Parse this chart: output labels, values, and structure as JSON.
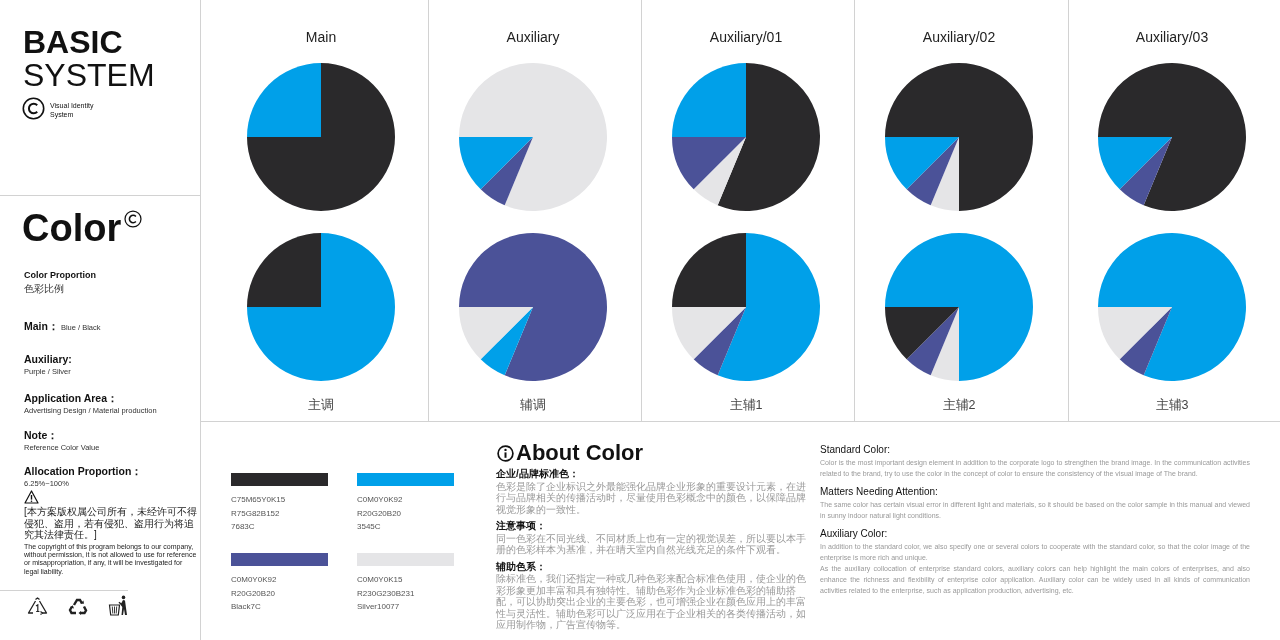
{
  "chart_data": [
    {
      "type": "other",
      "title": "BASIC",
      "subtitle": "SYSTEM",
      "annotations": [
        "Visual Identity System"
      ]
    },
    {
      "type": "other",
      "title": "Color",
      "annotations": [
        "Color Proportion",
        "色彩比例",
        "Main：",
        "Blue / Black",
        "Auxiliary:",
        "Purple / Silver",
        "Application Area：",
        "Advertising Design / Material production",
        "Note：",
        "Reference Color Value",
        "Allocation Proportion：",
        "6.25%~100%"
      ]
    },
    {
      "type": "other",
      "annotations": [
        "[本方案版权属公司所有，未经许可不得侵犯、盗用，若有侵犯、盗用行为将追究其法律责任。]",
        "The copyright of this program belongs to our company, without permission, it is not allowed to use for reference or misappropriation, if any, it will be investigated for legal liability."
      ]
    },
    {
      "type": "pie",
      "title": "Main",
      "categories": [
        null,
        null
      ],
      "values": [
        25,
        75
      ],
      "colors": [
        "#00a0e9",
        "#2a292b"
      ]
    },
    {
      "type": "pie",
      "title": "Auxiliary",
      "categories": [
        null,
        null,
        null
      ],
      "values": [
        81.25,
        6.25,
        12.5
      ],
      "colors": [
        "#e5e5e7",
        "#4b5298",
        "#00a0e9"
      ]
    },
    {
      "type": "pie",
      "title": "Auxiliary/01",
      "categories": [
        null,
        null,
        null,
        null
      ],
      "values": [
        25,
        56.25,
        6.25,
        12.5
      ],
      "colors": [
        "#00a0e9",
        "#2a292b",
        "#e5e5e7",
        "#4b5298"
      ]
    },
    {
      "type": "pie",
      "title": "Auxiliary/02",
      "categories": [
        null,
        null,
        null,
        null
      ],
      "values": [
        75,
        6.25,
        6.25,
        12.5
      ],
      "colors": [
        "#2a292b",
        "#e5e5e7",
        "#4b5298",
        "#00a0e9"
      ]
    },
    {
      "type": "pie",
      "title": "Auxiliary/03",
      "categories": [
        null,
        null,
        null
      ],
      "values": [
        81.25,
        6.25,
        12.5
      ],
      "colors": [
        "#2a292b",
        "#4b5298",
        "#00a0e9"
      ]
    },
    {
      "type": "pie",
      "title": "主调",
      "categories": [
        null,
        null
      ],
      "values": [
        25,
        75
      ],
      "colors": [
        "#2a292b",
        "#00a0e9"
      ]
    },
    {
      "type": "pie",
      "title": "辅调",
      "categories": [
        null,
        null,
        null
      ],
      "values": [
        81.25,
        6.25,
        12.5
      ],
      "colors": [
        "#4b5298",
        "#00a0e9",
        "#e5e5e7"
      ]
    },
    {
      "type": "pie",
      "title": "主辅1",
      "categories": [
        null,
        null,
        null,
        null
      ],
      "values": [
        25,
        56.25,
        6.25,
        12.5
      ],
      "colors": [
        "#2a292b",
        "#00a0e9",
        "#4b5298",
        "#e5e5e7"
      ]
    },
    {
      "type": "pie",
      "title": "主辅2",
      "categories": [
        null,
        null,
        null,
        null
      ],
      "values": [
        75,
        6.25,
        6.25,
        12.5
      ],
      "colors": [
        "#00a0e9",
        "#e5e5e7",
        "#4b5298",
        "#2a292b"
      ]
    },
    {
      "type": "pie",
      "title": "主辅3",
      "categories": [
        null,
        null,
        null
      ],
      "values": [
        81.25,
        6.25,
        12.5
      ],
      "colors": [
        "#00a0e9",
        "#4b5298",
        "#e5e5e7"
      ]
    },
    {
      "type": "other",
      "colors": [
        "#2a292b",
        "#00a0e9",
        "#4b5298",
        "#e5e5e7"
      ],
      "annotations": [
        "C75M65Y0K15",
        "R75G82B152",
        "7683C",
        "C0M0Y0K92",
        "R20G20B20",
        "3545C",
        "C0M0Y0K92",
        "R20G20B20",
        "Black7C",
        "C0M0Y0K15",
        "R230G230B231",
        "Silver10077"
      ]
    },
    {
      "type": "other",
      "title": "About Color",
      "annotations": [
        "企业/品牌标准色：",
        "色彩是除了企业标识之外最能强化品牌企业形象的重要设计元素，在进行与品牌相关的传播活动时，尽量使用色彩概念中的颜色，以保障品牌视觉形象的一致性。",
        "注意事项：",
        "同一色彩在不同光线、不同材质上也有一定的视觉误差，所以要以本手册的色彩样本为基准，并在晴天室内自然光线充足的条件下观看。",
        "辅助色系：",
        "除标准色，我们还指定一种或几种色彩来配合标准色使用，使企业的色彩形象更加丰富和具有独特性。辅助色彩作为企业标准色彩的辅助搭配，可以协助突出企业的主要色彩，也可增强企业在颜色应用上的丰富性与灵活性。辅助色彩可以广泛应用在于企业相关的各类传播活动，如应用制作物，广告宣传物等。"
      ]
    },
    {
      "type": "other",
      "annotations": [
        "Standard Color:",
        "Color is the most important design element in addition to the corporate logo to strengthen the brand image. In the communication activities related to the brand, try to use the color in the concept of color to ensure the consistency of the visual image of The brand.",
        "Matters Needing Attention:",
        "The same color has certain visual error in different light and materials, so it should be based on the color sample in this manual and viewed in sunny indoor natural light conditions.",
        "Auxiliary Color:",
        "In addition to the standard color, we also specify one or several colors to cooperate with the standard color, so that the color image of the enterprise is more rich and unique.\nAs the auxiliary collocation of enterprise standard colors, auxiliary colors can help highlight the main colors of enterprises, and also enhance the richness and flexibility of enterprise color application. Auxiliary color can be widely used in all kinds of communication activities related to the enterprise, such as application production, advertising, etc."
      ]
    }
  ]
}
